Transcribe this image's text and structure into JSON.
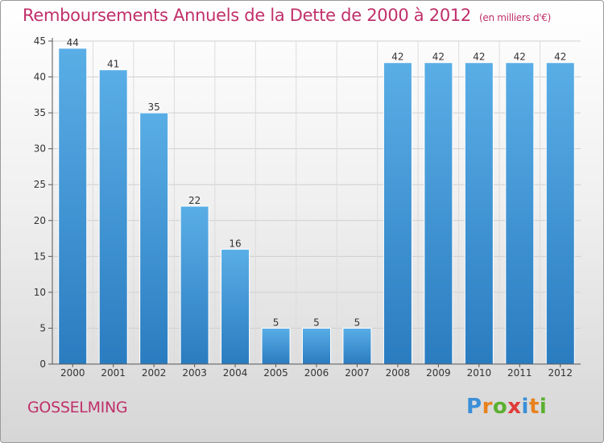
{
  "header": {
    "title": "Remboursements Annuels de la Dette de 2000 à 2012",
    "unit": "(en milliers d'€)"
  },
  "footer": {
    "commune": "GOSSELMING",
    "logo_letters": [
      "P",
      "r",
      "o",
      "x",
      "i",
      "t",
      "i"
    ],
    "logo_colors": [
      "#3a8fd8",
      "#e8821e",
      "#5bb030",
      "#e03a3a",
      "#3a8fd8",
      "#e8821e",
      "#5bb030"
    ]
  },
  "chart_data": {
    "type": "bar",
    "title": "Remboursements Annuels de la Dette de 2000 à 2012",
    "subtitle": "(en milliers d'€)",
    "xlabel": "",
    "ylabel": "",
    "categories": [
      "2000",
      "2001",
      "2002",
      "2003",
      "2004",
      "2005",
      "2006",
      "2007",
      "2008",
      "2009",
      "2010",
      "2011",
      "2012"
    ],
    "values": [
      44,
      41,
      35,
      22,
      16,
      5,
      5,
      5,
      42,
      42,
      42,
      42,
      42
    ],
    "ylim": [
      0,
      45
    ],
    "yticks": [
      0,
      5,
      10,
      15,
      20,
      25,
      30,
      35,
      40,
      45
    ],
    "grid": true,
    "legend": "none",
    "bar_color_top": "#5aaee6",
    "bar_color_bottom": "#2a7cc0"
  }
}
